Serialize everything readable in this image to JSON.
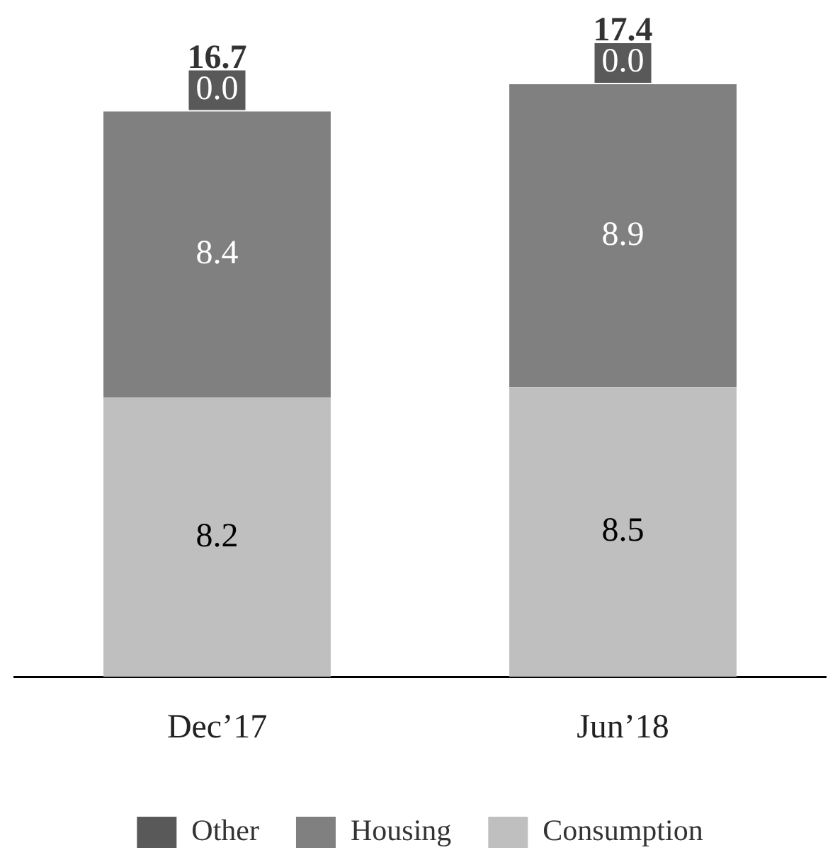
{
  "chart_data": {
    "type": "bar",
    "stacked": true,
    "categories": [
      "Dec’17",
      "Jun’18"
    ],
    "series": [
      {
        "name": "Consumption",
        "color": "#bfbfbf",
        "values": [
          8.2,
          8.5
        ],
        "value_labels": [
          "8.2",
          "8.5"
        ]
      },
      {
        "name": "Housing",
        "color": "#808080",
        "values": [
          8.4,
          8.9
        ],
        "value_labels": [
          "8.4",
          "8.9"
        ]
      },
      {
        "name": "Other",
        "color": "#595959",
        "values": [
          0.0,
          0.0
        ],
        "value_labels": [
          "0.0",
          "0.0"
        ]
      }
    ],
    "totals": [
      "16.7",
      "17.4"
    ],
    "legend": "bottom",
    "tick_labels": "x"
  }
}
